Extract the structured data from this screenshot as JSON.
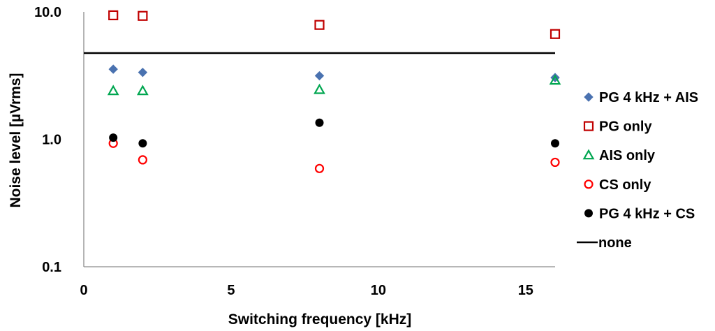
{
  "chart_data": {
    "type": "scatter",
    "xlabel": "Switching frequency [kHz]",
    "ylabel": "Noise level [µVrms]",
    "x_scale": "linear",
    "y_scale": "log",
    "xlim": [
      0,
      16
    ],
    "ylim": [
      0.1,
      10
    ],
    "x_ticks": [
      0,
      5,
      10,
      15
    ],
    "x_tick_labels": [
      "0",
      "5",
      "10",
      "15"
    ],
    "y_ticks": [
      0.1,
      1,
      10
    ],
    "y_tick_labels": [
      "0.1",
      "1.0",
      "10.0"
    ],
    "grid": false,
    "legend_position": "right",
    "series": [
      {
        "name": "PG 4 kHz + AIS",
        "marker": "diamond",
        "color": "#4a72b0",
        "filled": true,
        "x": [
          1,
          2,
          8,
          16
        ],
        "y": [
          3.55,
          3.35,
          3.15,
          3.05
        ]
      },
      {
        "name": "PG only",
        "marker": "square",
        "color": "#c00000",
        "filled": false,
        "x": [
          1,
          2,
          8,
          16
        ],
        "y": [
          9.4,
          9.3,
          7.9,
          6.7
        ]
      },
      {
        "name": "AIS only",
        "marker": "triangle",
        "color": "#00a650",
        "filled": false,
        "x": [
          1,
          2,
          8,
          16
        ],
        "y": [
          2.4,
          2.4,
          2.45,
          2.9
        ]
      },
      {
        "name": "CS only",
        "marker": "circle",
        "color": "#ff0000",
        "filled": false,
        "x": [
          1,
          2,
          8,
          16
        ],
        "y": [
          0.93,
          0.69,
          0.59,
          0.66
        ]
      },
      {
        "name": "PG 4 kHz + CS",
        "marker": "circle",
        "color": "#000000",
        "filled": true,
        "x": [
          1,
          2,
          8,
          16
        ],
        "y": [
          1.03,
          0.93,
          1.35,
          0.93
        ]
      },
      {
        "name": "none",
        "marker": "line",
        "color": "#000000",
        "filled": true,
        "x": [
          0,
          16
        ],
        "y": [
          4.75,
          4.75
        ]
      }
    ]
  }
}
